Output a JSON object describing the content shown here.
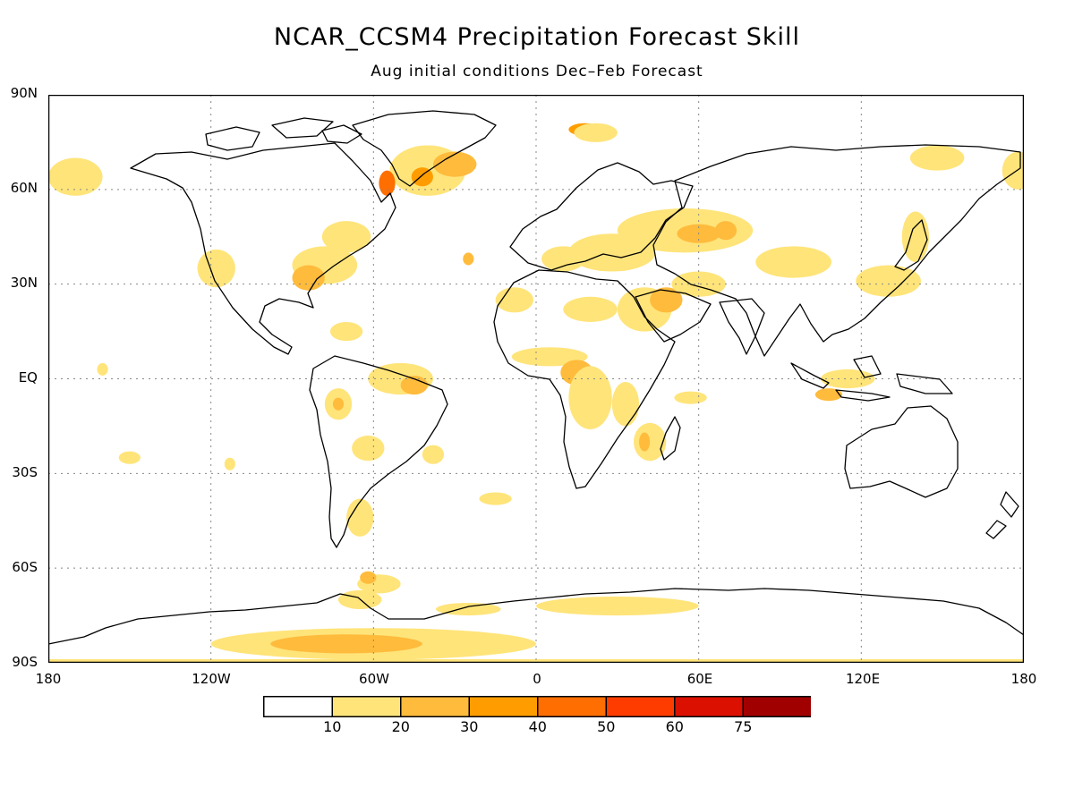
{
  "title": "NCAR_CCSM4 Precipitation Forecast Skill",
  "subtitle": "Aug initial conditions   Dec–Feb Forecast",
  "map_data": {
    "type": "heatmap",
    "projection": "equirectangular",
    "lon_range": [
      -180,
      180
    ],
    "lat_range": [
      -90,
      90
    ],
    "lat_ticks": [
      {
        "value": 90,
        "label": "90N"
      },
      {
        "value": 60,
        "label": "60N"
      },
      {
        "value": 30,
        "label": "30N"
      },
      {
        "value": 0,
        "label": "EQ"
      },
      {
        "value": -30,
        "label": "30S"
      },
      {
        "value": -60,
        "label": "60S"
      },
      {
        "value": -90,
        "label": "90S"
      }
    ],
    "lon_ticks": [
      {
        "value": -180,
        "label": "180"
      },
      {
        "value": -120,
        "label": "120W"
      },
      {
        "value": -60,
        "label": "60W"
      },
      {
        "value": 0,
        "label": "0"
      },
      {
        "value": 60,
        "label": "60E"
      },
      {
        "value": 120,
        "label": "120E"
      },
      {
        "value": 180,
        "label": "180"
      }
    ],
    "colorbar": {
      "boundaries": [
        "10",
        "20",
        "30",
        "40",
        "50",
        "60",
        "75"
      ],
      "colors": [
        "#ffffff",
        "#ffe47a",
        "#ffbb3c",
        "#ff9d00",
        "#ff6e00",
        "#ff3c00",
        "#dc1000",
        "#a00000"
      ]
    },
    "skill_regions": [
      {
        "lon": -40,
        "lat": 66,
        "rx": 14,
        "ry": 8,
        "level": 1
      },
      {
        "lon": -30,
        "lat": 68,
        "rx": 8,
        "ry": 4,
        "level": 2
      },
      {
        "lon": -55,
        "lat": 62,
        "rx": 3,
        "ry": 4,
        "level": 4
      },
      {
        "lon": -42,
        "lat": 64,
        "rx": 4,
        "ry": 3,
        "level": 3
      },
      {
        "lon": 18,
        "lat": 79,
        "rx": 6,
        "ry": 2,
        "level": 3
      },
      {
        "lon": 22,
        "lat": 78,
        "rx": 8,
        "ry": 3,
        "level": 1
      },
      {
        "lon": 148,
        "lat": 70,
        "rx": 10,
        "ry": 4,
        "level": 1
      },
      {
        "lon": -170,
        "lat": 64,
        "rx": 10,
        "ry": 6,
        "level": 1
      },
      {
        "lon": 178,
        "lat": 66,
        "rx": 6,
        "ry": 6,
        "level": 1
      },
      {
        "lon": -118,
        "lat": 35,
        "rx": 7,
        "ry": 6,
        "level": 1
      },
      {
        "lon": -78,
        "lat": 36,
        "rx": 12,
        "ry": 6,
        "level": 1
      },
      {
        "lon": -84,
        "lat": 32,
        "rx": 6,
        "ry": 4,
        "level": 2
      },
      {
        "lon": -70,
        "lat": 45,
        "rx": 9,
        "ry": 5,
        "level": 1
      },
      {
        "lon": -25,
        "lat": 38,
        "rx": 2,
        "ry": 2,
        "level": 2
      },
      {
        "lon": 55,
        "lat": 47,
        "rx": 25,
        "ry": 7,
        "level": 1
      },
      {
        "lon": 60,
        "lat": 46,
        "rx": 8,
        "ry": 3,
        "level": 2
      },
      {
        "lon": 70,
        "lat": 47,
        "rx": 4,
        "ry": 3,
        "level": 2
      },
      {
        "lon": 28,
        "lat": 40,
        "rx": 16,
        "ry": 6,
        "level": 1
      },
      {
        "lon": 10,
        "lat": 38,
        "rx": 8,
        "ry": 4,
        "level": 1
      },
      {
        "lon": 95,
        "lat": 37,
        "rx": 14,
        "ry": 5,
        "level": 1
      },
      {
        "lon": 130,
        "lat": 31,
        "rx": 12,
        "ry": 5,
        "level": 1
      },
      {
        "lon": 140,
        "lat": 45,
        "rx": 5,
        "ry": 8,
        "level": 1
      },
      {
        "lon": 40,
        "lat": 22,
        "rx": 10,
        "ry": 7,
        "level": 1
      },
      {
        "lon": 48,
        "lat": 25,
        "rx": 6,
        "ry": 4,
        "level": 2
      },
      {
        "lon": 20,
        "lat": 22,
        "rx": 10,
        "ry": 4,
        "level": 1
      },
      {
        "lon": -8,
        "lat": 25,
        "rx": 7,
        "ry": 4,
        "level": 1
      },
      {
        "lon": 60,
        "lat": 30,
        "rx": 10,
        "ry": 4,
        "level": 1
      },
      {
        "lon": 5,
        "lat": 7,
        "rx": 14,
        "ry": 3,
        "level": 1
      },
      {
        "lon": 15,
        "lat": 2,
        "rx": 6,
        "ry": 4,
        "level": 2
      },
      {
        "lon": 20,
        "lat": -6,
        "rx": 8,
        "ry": 10,
        "level": 1
      },
      {
        "lon": 33,
        "lat": -8,
        "rx": 5,
        "ry": 7,
        "level": 1
      },
      {
        "lon": 42,
        "lat": -20,
        "rx": 6,
        "ry": 6,
        "level": 1
      },
      {
        "lon": 40,
        "lat": -20,
        "rx": 2,
        "ry": 3,
        "level": 2
      },
      {
        "lon": 57,
        "lat": -6,
        "rx": 6,
        "ry": 2,
        "level": 1
      },
      {
        "lon": -50,
        "lat": 0,
        "rx": 12,
        "ry": 5,
        "level": 1
      },
      {
        "lon": -45,
        "lat": -2,
        "rx": 5,
        "ry": 3,
        "level": 2
      },
      {
        "lon": -73,
        "lat": -8,
        "rx": 5,
        "ry": 5,
        "level": 1
      },
      {
        "lon": -73,
        "lat": -8,
        "rx": 2,
        "ry": 2,
        "level": 2
      },
      {
        "lon": -62,
        "lat": -22,
        "rx": 6,
        "ry": 4,
        "level": 1
      },
      {
        "lon": -38,
        "lat": -24,
        "rx": 4,
        "ry": 3,
        "level": 1
      },
      {
        "lon": -65,
        "lat": -44,
        "rx": 5,
        "ry": 6,
        "level": 1
      },
      {
        "lon": -70,
        "lat": 15,
        "rx": 6,
        "ry": 3,
        "level": 1
      },
      {
        "lon": -160,
        "lat": 3,
        "rx": 2,
        "ry": 2,
        "level": 1
      },
      {
        "lon": -150,
        "lat": -25,
        "rx": 4,
        "ry": 2,
        "level": 1
      },
      {
        "lon": -113,
        "lat": -27,
        "rx": 2,
        "ry": 2,
        "level": 1
      },
      {
        "lon": -15,
        "lat": -38,
        "rx": 6,
        "ry": 2,
        "level": 1
      },
      {
        "lon": 115,
        "lat": 0,
        "rx": 10,
        "ry": 3,
        "level": 1
      },
      {
        "lon": 108,
        "lat": -5,
        "rx": 5,
        "ry": 2,
        "level": 2
      },
      {
        "lon": -58,
        "lat": -65,
        "rx": 8,
        "ry": 3,
        "level": 1
      },
      {
        "lon": -62,
        "lat": -63,
        "rx": 3,
        "ry": 2,
        "level": 2
      },
      {
        "lon": -65,
        "lat": -70,
        "rx": 8,
        "ry": 3,
        "level": 1
      },
      {
        "lon": -25,
        "lat": -73,
        "rx": 12,
        "ry": 2,
        "level": 1
      },
      {
        "lon": 30,
        "lat": -72,
        "rx": 30,
        "ry": 3,
        "level": 1
      },
      {
        "lon": -60,
        "lat": -84,
        "rx": 60,
        "ry": 5,
        "level": 1
      },
      {
        "lon": -70,
        "lat": -84,
        "rx": 28,
        "ry": 3,
        "level": 2
      }
    ]
  }
}
